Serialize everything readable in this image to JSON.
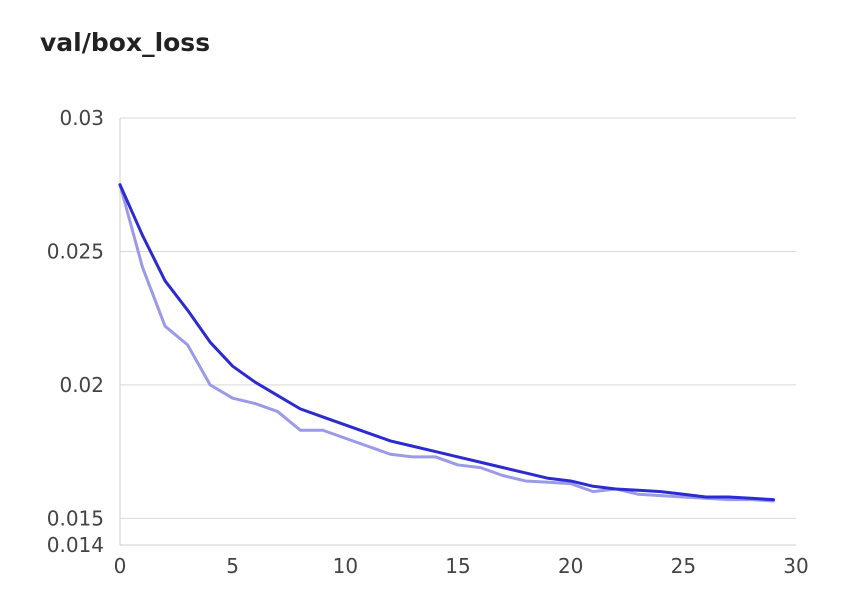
{
  "chart_data": {
    "type": "line",
    "title": "val/box_loss",
    "xlabel": "",
    "ylabel": "",
    "xlim": [
      0,
      30
    ],
    "ylim": [
      0.014,
      0.03
    ],
    "grid": true,
    "x_ticks": [
      "0",
      "5",
      "10",
      "15",
      "20",
      "25",
      "30"
    ],
    "y_ticks": [
      {
        "label": "0.03",
        "value": 0.03
      },
      {
        "label": "0.025",
        "value": 0.025
      },
      {
        "label": "0.02",
        "value": 0.02
      },
      {
        "label": "0.015",
        "value": 0.015
      },
      {
        "label": "0.014",
        "value": 0.014
      }
    ],
    "x": [
      0,
      1,
      2,
      3,
      4,
      5,
      6,
      7,
      8,
      9,
      10,
      11,
      12,
      13,
      14,
      15,
      16,
      17,
      18,
      19,
      20,
      21,
      22,
      23,
      24,
      25,
      26,
      27,
      28,
      29
    ],
    "series": [
      {
        "color": "#9a9ae8",
        "values": [
          0.0275,
          0.0244,
          0.0222,
          0.0215,
          0.02,
          0.0195,
          0.0193,
          0.019,
          0.0183,
          0.0183,
          0.018,
          0.0177,
          0.0174,
          0.0173,
          0.0173,
          0.017,
          0.0169,
          0.0166,
          0.0164,
          0.01635,
          0.0163,
          0.016,
          0.0161,
          0.0159,
          0.01585,
          0.0158,
          0.01575,
          0.0157,
          0.0157,
          0.01565
        ]
      },
      {
        "color": "#2b2bd1",
        "values": [
          0.0275,
          0.0256,
          0.0239,
          0.0228,
          0.0216,
          0.0207,
          0.0201,
          0.0196,
          0.0191,
          0.0188,
          0.0185,
          0.0182,
          0.0179,
          0.0177,
          0.0175,
          0.0173,
          0.0171,
          0.0169,
          0.0167,
          0.0165,
          0.0164,
          0.0162,
          0.0161,
          0.01605,
          0.016,
          0.0159,
          0.0158,
          0.0158,
          0.01575,
          0.0157
        ]
      }
    ]
  }
}
